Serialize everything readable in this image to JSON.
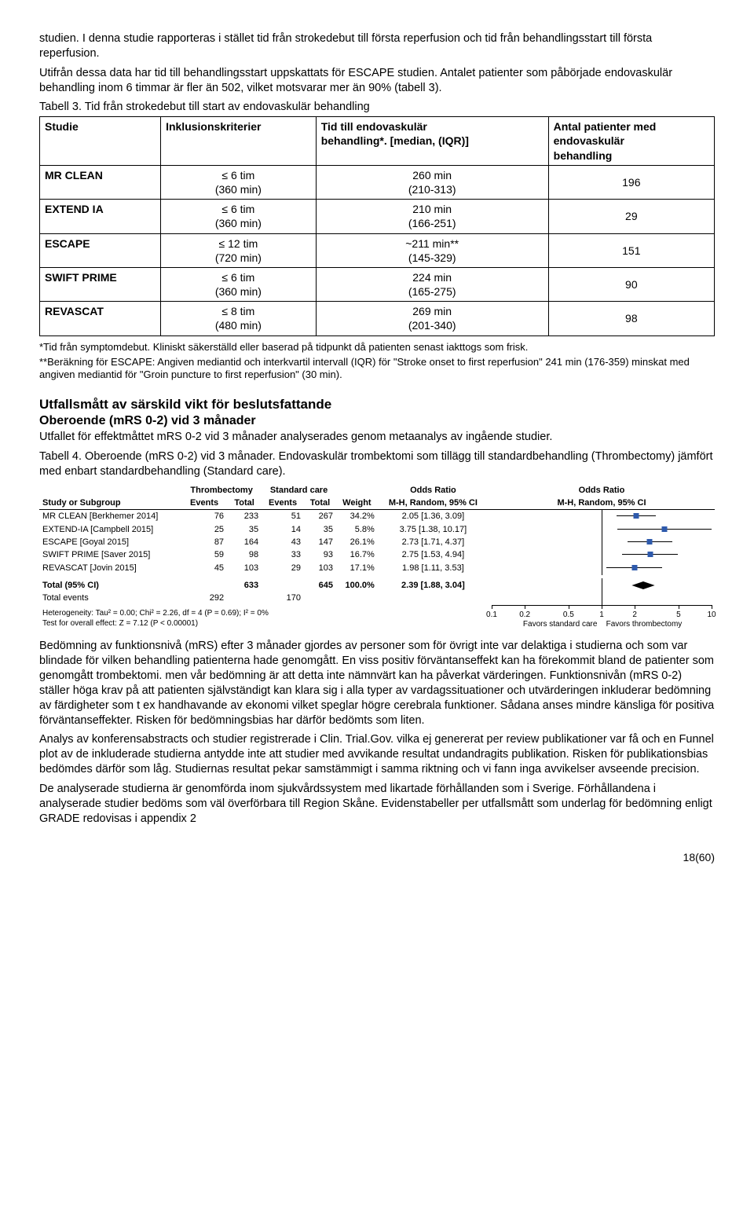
{
  "intro": {
    "p1": "studien. I denna studie rapporteras i stället tid från strokedebut till första reperfusion och tid från behandlingsstart till första reperfusion.",
    "p2": "Utifrån dessa data har tid till behandlingsstart uppskattats för ESCAPE studien. Antalet patienter som påbörjade endovaskulär behandling inom 6 timmar är fler än 502, vilket motsvarar mer än 90% (tabell 3).",
    "tbl3cap": "Tabell 3. Tid från strokedebut till start av endovaskulär behandling"
  },
  "table3": {
    "headers": {
      "c1": "Studie",
      "c2": "Inklusionskriterier",
      "c3a": "Tid till endovaskulär",
      "c3b": "behandling*. [median, (IQR)]",
      "c4a": "Antal patienter med",
      "c4b": "endovaskulär",
      "c4c": "behandling"
    },
    "rows": [
      {
        "study": "MR CLEAN",
        "incl1": "≤ 6 tim",
        "incl2": "(360 min)",
        "t1": "260 min",
        "t2": "(210-313)",
        "n": "196"
      },
      {
        "study": "EXTEND IA",
        "incl1": "≤ 6 tim",
        "incl2": "(360 min)",
        "t1": "210 min",
        "t2": "(166-251)",
        "n": "29"
      },
      {
        "study": "ESCAPE",
        "incl1": "≤ 12 tim",
        "incl2": "(720 min)",
        "t1": "~211 min**",
        "t2": "(145-329)",
        "n": "151"
      },
      {
        "study": "SWIFT PRIME",
        "incl1": "≤ 6 tim",
        "incl2": "(360 min)",
        "t1": "224 min",
        "t2": "(165-275)",
        "n": "90"
      },
      {
        "study": "REVASCAT",
        "incl1": "≤ 8 tim",
        "incl2": "(480 min)",
        "t1": "269 min",
        "t2": "(201-340)",
        "n": "98"
      }
    ],
    "note1": "*Tid från symptomdebut. Kliniskt säkerställd eller baserad på tidpunkt då patienten senast iakttogs som frisk.",
    "note2": "**Beräkning för ESCAPE: Angiven mediantid och interkvartil intervall (IQR) för \"Stroke onset to first reperfusion\" 241 min (176-359) minskat med angiven mediantid för \"Groin puncture to first reperfusion\" (30 min)."
  },
  "section": {
    "h2": "Utfallsmått av särskild vikt för beslutsfattande",
    "h3": "Oberoende (mRS 0-2) vid 3 månader",
    "p1": "Utfallet för effektmåttet mRS 0-2 vid 3 månader analyserades genom metaanalys av ingående studier.",
    "tbl4cap": "Tabell 4. Oberoende (mRS 0-2) vid 3 månader. Endovaskulär trombektomi som tillägg till standardbehandling (Thrombectomy) jämfört med enbart standardbehandling (Standard care)."
  },
  "forest": {
    "grouphdr": {
      "g1": "Thrombectomy",
      "g2": "Standard care",
      "or": "Odds Ratio",
      "or2": "Odds Ratio"
    },
    "hdr": {
      "study": "Study or Subgroup",
      "ev": "Events",
      "tot": "Total",
      "ev2": "Events",
      "tot2": "Total",
      "w": "Weight",
      "mh": "M-H, Random, 95% CI",
      "mh2": "M-H, Random, 95% CI"
    },
    "scale": {
      "min": 0.1,
      "max": 10,
      "ticks": [
        0.1,
        0.2,
        0.5,
        1,
        2,
        5,
        10
      ]
    },
    "rows": [
      {
        "name": "MR CLEAN [Berkhemer 2014]",
        "e1": "76",
        "t1": "233",
        "e2": "51",
        "t2": "267",
        "w": "34.2%",
        "ci": "2.05 [1.36, 3.09]",
        "lo": 1.36,
        "pt": 2.05,
        "hi": 3.09
      },
      {
        "name": "EXTEND-IA [Campbell 2015]",
        "e1": "25",
        "t1": "35",
        "e2": "14",
        "t2": "35",
        "w": "5.8%",
        "ci": "3.75 [1.38, 10.17]",
        "lo": 1.38,
        "pt": 3.75,
        "hi": 10.17
      },
      {
        "name": "ESCAPE [Goyal 2015]",
        "e1": "87",
        "t1": "164",
        "e2": "43",
        "t2": "147",
        "w": "26.1%",
        "ci": "2.73 [1.71, 4.37]",
        "lo": 1.71,
        "pt": 2.73,
        "hi": 4.37
      },
      {
        "name": "SWIFT PRIME [Saver 2015]",
        "e1": "59",
        "t1": "98",
        "e2": "33",
        "t2": "93",
        "w": "16.7%",
        "ci": "2.75 [1.53, 4.94]",
        "lo": 1.53,
        "pt": 2.75,
        "hi": 4.94
      },
      {
        "name": "REVASCAT [Jovin 2015]",
        "e1": "45",
        "t1": "103",
        "e2": "29",
        "t2": "103",
        "w": "17.1%",
        "ci": "1.98 [1.11, 3.53]",
        "lo": 1.11,
        "pt": 1.98,
        "hi": 3.53
      }
    ],
    "total": {
      "label": "Total (95% CI)",
      "t1": "633",
      "t2": "645",
      "w": "100.0%",
      "ci": "2.39 [1.88, 3.04]",
      "lo": 1.88,
      "pt": 2.39,
      "hi": 3.04
    },
    "totalev": {
      "label": "Total events",
      "e1": "292",
      "e2": "170"
    },
    "het": "Heterogeneity: Tau² = 0.00; Chi² = 2.26, df = 4 (P = 0.69); I² = 0%",
    "test": "Test for overall effect: Z = 7.12 (P < 0.00001)",
    "axisl": "Favors standard care",
    "axisr": "Favors thrombectomy"
  },
  "discussion": {
    "p1": "Bedömning av funktionsnivå (mRS) efter 3 månader gjordes av personer som för övrigt inte var delaktiga i studierna och som var blindade för vilken behandling patienterna hade genomgått. En viss positiv förväntanseffekt kan ha förekommit bland de patienter som genomgått trombektomi. men vår bedömning är att detta inte nämnvärt kan ha påverkat värderingen. Funktionsnivån (mRS 0-2) ställer höga krav på att patienten självständigt kan klara sig i alla typer av vardagssituationer och utvärderingen inkluderar bedömning av färdigheter som t ex handhavande av ekonomi vilket speglar högre cerebrala funktioner. Sådana anses mindre känsliga för positiva förväntanseffekter. Risken för bedömningsbias har därför bedömts som liten.",
    "p2": "Analys av konferensabstracts och studier registrerade i Clin. Trial.Gov. vilka ej genererat per review publikationer var få och en Funnel plot av de inkluderade studierna antydde inte att studier med avvikande resultat undandragits publikation. Risken för publikationsbias bedömdes därför som låg. Studiernas resultat pekar samstämmigt i samma riktning och vi fann inga avvikelser avseende precision.",
    "p3": "De analyserade studierna är genomförda inom sjukvårdssystem med likartade förhållanden som i Sverige. Förhållandena i analyserade studier bedöms som väl överförbara till Region Skåne. Evidenstabeller per utfallsmått som underlag för bedömning enligt GRADE redovisas i appendix 2"
  },
  "footer": {
    "page": "18(60)"
  }
}
